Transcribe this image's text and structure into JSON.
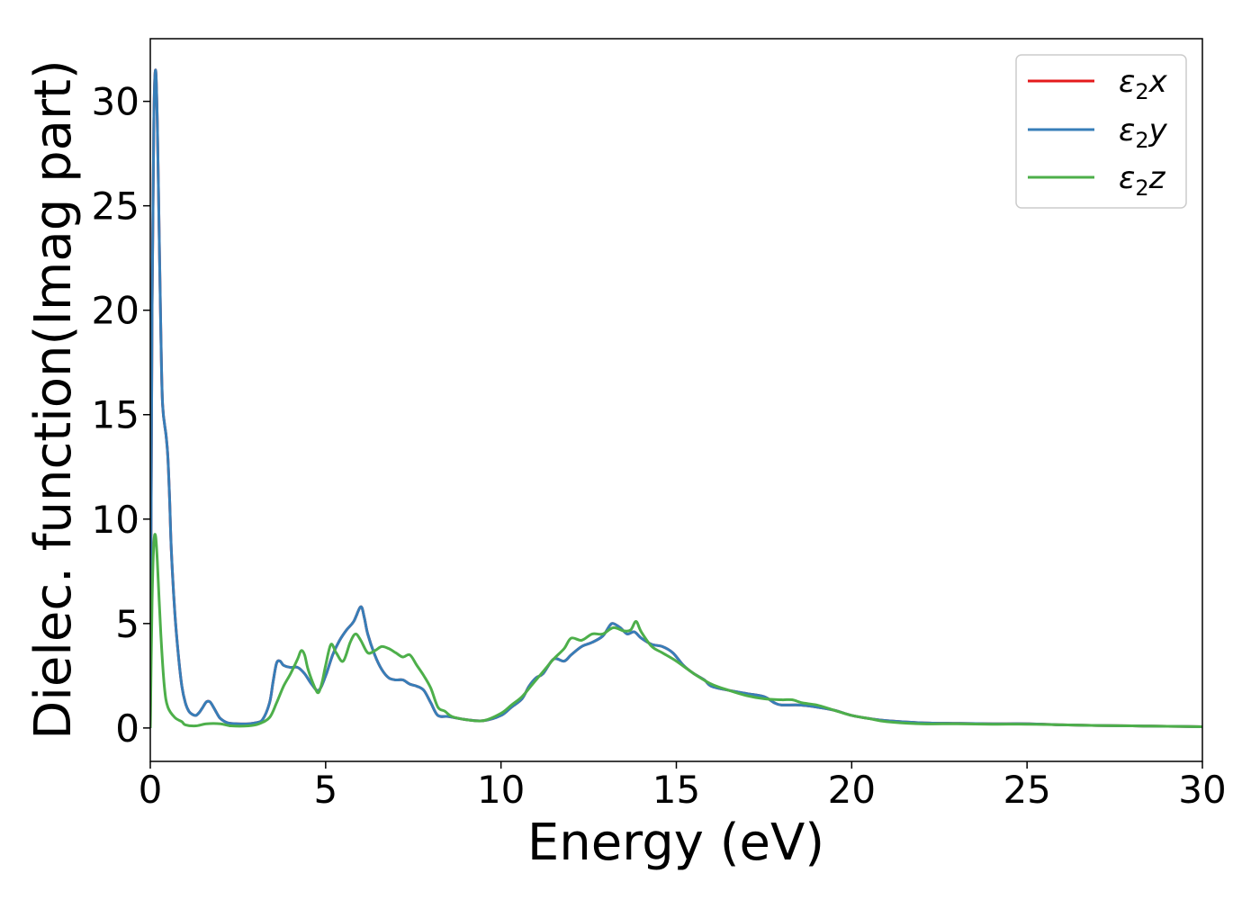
{
  "chart_data": {
    "type": "line",
    "xlabel": "Energy (eV)",
    "ylabel": "Dielec. function(Imag part)",
    "xlim": [
      0,
      30
    ],
    "ylim": [
      -1.6,
      33
    ],
    "xticks": [
      0,
      5,
      10,
      15,
      20,
      25,
      30
    ],
    "yticks": [
      0,
      5,
      10,
      15,
      20,
      25,
      30
    ],
    "grid": false,
    "legend_position": "top-right",
    "legend_entries": [
      {
        "base": "ε",
        "sub": "2",
        "suffix": "x"
      },
      {
        "base": "ε",
        "sub": "2",
        "suffix": "y"
      },
      {
        "base": "ε",
        "sub": "2",
        "suffix": "z"
      }
    ],
    "series": [
      {
        "name": "ε2x",
        "color": "#e41a1c",
        "points": [
          [
            0,
            0
          ],
          [
            0.05,
            20
          ],
          [
            0.1,
            29
          ],
          [
            0.15,
            31.5
          ],
          [
            0.2,
            29
          ],
          [
            0.25,
            24
          ],
          [
            0.3,
            19
          ],
          [
            0.35,
            15.5
          ],
          [
            0.45,
            14
          ],
          [
            0.5,
            13
          ],
          [
            0.55,
            11
          ],
          [
            0.6,
            8.5
          ],
          [
            0.7,
            5.5
          ],
          [
            0.8,
            3.5
          ],
          [
            0.9,
            2
          ],
          [
            1.0,
            1.2
          ],
          [
            1.1,
            0.8
          ],
          [
            1.2,
            0.65
          ],
          [
            1.3,
            0.6
          ],
          [
            1.4,
            0.75
          ],
          [
            1.5,
            1.0
          ],
          [
            1.6,
            1.25
          ],
          [
            1.7,
            1.25
          ],
          [
            1.8,
            1.0
          ],
          [
            1.9,
            0.7
          ],
          [
            2.0,
            0.45
          ],
          [
            2.2,
            0.25
          ],
          [
            2.5,
            0.2
          ],
          [
            2.8,
            0.2
          ],
          [
            3.0,
            0.25
          ],
          [
            3.2,
            0.4
          ],
          [
            3.4,
            1.2
          ],
          [
            3.5,
            2.2
          ],
          [
            3.6,
            3.1
          ],
          [
            3.7,
            3.2
          ],
          [
            3.8,
            3.0
          ],
          [
            4.0,
            2.9
          ],
          [
            4.2,
            2.9
          ],
          [
            4.4,
            2.6
          ],
          [
            4.6,
            2.1
          ],
          [
            4.8,
            1.8
          ],
          [
            5.0,
            2.5
          ],
          [
            5.2,
            3.5
          ],
          [
            5.4,
            4.2
          ],
          [
            5.6,
            4.7
          ],
          [
            5.8,
            5.1
          ],
          [
            6.0,
            5.8
          ],
          [
            6.1,
            5.3
          ],
          [
            6.2,
            4.5
          ],
          [
            6.4,
            3.5
          ],
          [
            6.6,
            2.8
          ],
          [
            6.8,
            2.4
          ],
          [
            7.0,
            2.3
          ],
          [
            7.2,
            2.3
          ],
          [
            7.4,
            2.1
          ],
          [
            7.6,
            2.0
          ],
          [
            7.8,
            1.8
          ],
          [
            8.0,
            1.2
          ],
          [
            8.2,
            0.6
          ],
          [
            8.5,
            0.55
          ],
          [
            9.0,
            0.4
          ],
          [
            9.5,
            0.35
          ],
          [
            10.0,
            0.6
          ],
          [
            10.3,
            1.0
          ],
          [
            10.6,
            1.4
          ],
          [
            10.8,
            2.0
          ],
          [
            11.0,
            2.4
          ],
          [
            11.2,
            2.6
          ],
          [
            11.5,
            3.3
          ],
          [
            11.8,
            3.2
          ],
          [
            12.0,
            3.5
          ],
          [
            12.3,
            3.9
          ],
          [
            12.6,
            4.1
          ],
          [
            12.9,
            4.4
          ],
          [
            13.1,
            4.9
          ],
          [
            13.2,
            5.0
          ],
          [
            13.4,
            4.8
          ],
          [
            13.6,
            4.5
          ],
          [
            13.8,
            4.6
          ],
          [
            14.0,
            4.3
          ],
          [
            14.3,
            4.0
          ],
          [
            14.6,
            3.9
          ],
          [
            14.9,
            3.6
          ],
          [
            15.2,
            3.0
          ],
          [
            15.5,
            2.6
          ],
          [
            15.8,
            2.3
          ],
          [
            16.0,
            2.0
          ],
          [
            16.5,
            1.8
          ],
          [
            17.0,
            1.65
          ],
          [
            17.5,
            1.5
          ],
          [
            17.8,
            1.2
          ],
          [
            18.0,
            1.1
          ],
          [
            18.5,
            1.1
          ],
          [
            19.0,
            1.0
          ],
          [
            19.5,
            0.85
          ],
          [
            20.0,
            0.6
          ],
          [
            20.5,
            0.45
          ],
          [
            21.0,
            0.35
          ],
          [
            22.0,
            0.25
          ],
          [
            23.0,
            0.22
          ],
          [
            24.0,
            0.2
          ],
          [
            25.0,
            0.2
          ],
          [
            26.0,
            0.15
          ],
          [
            27.0,
            0.12
          ],
          [
            28.0,
            0.1
          ],
          [
            29.0,
            0.08
          ],
          [
            30.0,
            0.06
          ]
        ]
      },
      {
        "name": "ε2y",
        "color": "#377eb8",
        "points": [
          [
            0,
            0
          ],
          [
            0.05,
            20
          ],
          [
            0.1,
            29
          ],
          [
            0.15,
            31.5
          ],
          [
            0.2,
            29
          ],
          [
            0.25,
            24
          ],
          [
            0.3,
            19
          ],
          [
            0.35,
            15.5
          ],
          [
            0.45,
            14
          ],
          [
            0.5,
            13
          ],
          [
            0.55,
            11
          ],
          [
            0.6,
            8.5
          ],
          [
            0.7,
            5.5
          ],
          [
            0.8,
            3.5
          ],
          [
            0.9,
            2
          ],
          [
            1.0,
            1.2
          ],
          [
            1.1,
            0.8
          ],
          [
            1.2,
            0.65
          ],
          [
            1.3,
            0.6
          ],
          [
            1.4,
            0.75
          ],
          [
            1.5,
            1.0
          ],
          [
            1.6,
            1.25
          ],
          [
            1.7,
            1.25
          ],
          [
            1.8,
            1.0
          ],
          [
            1.9,
            0.7
          ],
          [
            2.0,
            0.45
          ],
          [
            2.2,
            0.25
          ],
          [
            2.5,
            0.2
          ],
          [
            2.8,
            0.2
          ],
          [
            3.0,
            0.25
          ],
          [
            3.2,
            0.4
          ],
          [
            3.4,
            1.2
          ],
          [
            3.5,
            2.2
          ],
          [
            3.6,
            3.1
          ],
          [
            3.7,
            3.2
          ],
          [
            3.8,
            3.0
          ],
          [
            4.0,
            2.9
          ],
          [
            4.2,
            2.9
          ],
          [
            4.4,
            2.6
          ],
          [
            4.6,
            2.1
          ],
          [
            4.8,
            1.8
          ],
          [
            5.0,
            2.5
          ],
          [
            5.2,
            3.5
          ],
          [
            5.4,
            4.2
          ],
          [
            5.6,
            4.7
          ],
          [
            5.8,
            5.1
          ],
          [
            6.0,
            5.8
          ],
          [
            6.1,
            5.3
          ],
          [
            6.2,
            4.5
          ],
          [
            6.4,
            3.5
          ],
          [
            6.6,
            2.8
          ],
          [
            6.8,
            2.4
          ],
          [
            7.0,
            2.3
          ],
          [
            7.2,
            2.3
          ],
          [
            7.4,
            2.1
          ],
          [
            7.6,
            2.0
          ],
          [
            7.8,
            1.8
          ],
          [
            8.0,
            1.2
          ],
          [
            8.2,
            0.6
          ],
          [
            8.5,
            0.55
          ],
          [
            9.0,
            0.4
          ],
          [
            9.5,
            0.35
          ],
          [
            10.0,
            0.6
          ],
          [
            10.3,
            1.0
          ],
          [
            10.6,
            1.4
          ],
          [
            10.8,
            2.0
          ],
          [
            11.0,
            2.4
          ],
          [
            11.2,
            2.6
          ],
          [
            11.5,
            3.3
          ],
          [
            11.8,
            3.2
          ],
          [
            12.0,
            3.5
          ],
          [
            12.3,
            3.9
          ],
          [
            12.6,
            4.1
          ],
          [
            12.9,
            4.4
          ],
          [
            13.1,
            4.9
          ],
          [
            13.2,
            5.0
          ],
          [
            13.4,
            4.8
          ],
          [
            13.6,
            4.5
          ],
          [
            13.8,
            4.6
          ],
          [
            14.0,
            4.3
          ],
          [
            14.3,
            4.0
          ],
          [
            14.6,
            3.9
          ],
          [
            14.9,
            3.6
          ],
          [
            15.2,
            3.0
          ],
          [
            15.5,
            2.6
          ],
          [
            15.8,
            2.3
          ],
          [
            16.0,
            2.0
          ],
          [
            16.5,
            1.8
          ],
          [
            17.0,
            1.65
          ],
          [
            17.5,
            1.5
          ],
          [
            17.8,
            1.2
          ],
          [
            18.0,
            1.1
          ],
          [
            18.5,
            1.1
          ],
          [
            19.0,
            1.0
          ],
          [
            19.5,
            0.85
          ],
          [
            20.0,
            0.6
          ],
          [
            20.5,
            0.45
          ],
          [
            21.0,
            0.35
          ],
          [
            22.0,
            0.25
          ],
          [
            23.0,
            0.22
          ],
          [
            24.0,
            0.2
          ],
          [
            25.0,
            0.2
          ],
          [
            26.0,
            0.15
          ],
          [
            27.0,
            0.12
          ],
          [
            28.0,
            0.1
          ],
          [
            29.0,
            0.08
          ],
          [
            30.0,
            0.06
          ]
        ]
      },
      {
        "name": "ε2z",
        "color": "#4daf4a",
        "points": [
          [
            0,
            0
          ],
          [
            0.05,
            6
          ],
          [
            0.1,
            8.8
          ],
          [
            0.15,
            9.2
          ],
          [
            0.2,
            8
          ],
          [
            0.3,
            4.5
          ],
          [
            0.4,
            2
          ],
          [
            0.5,
            1
          ],
          [
            0.7,
            0.5
          ],
          [
            0.9,
            0.3
          ],
          [
            1.0,
            0.15
          ],
          [
            1.3,
            0.1
          ],
          [
            1.6,
            0.2
          ],
          [
            2.0,
            0.2
          ],
          [
            2.3,
            0.1
          ],
          [
            2.8,
            0.1
          ],
          [
            3.1,
            0.2
          ],
          [
            3.4,
            0.5
          ],
          [
            3.6,
            1.2
          ],
          [
            3.8,
            2.0
          ],
          [
            4.0,
            2.6
          ],
          [
            4.2,
            3.3
          ],
          [
            4.3,
            3.7
          ],
          [
            4.4,
            3.5
          ],
          [
            4.5,
            2.8
          ],
          [
            4.7,
            1.9
          ],
          [
            4.8,
            1.7
          ],
          [
            4.9,
            2.2
          ],
          [
            5.0,
            3.0
          ],
          [
            5.15,
            4.0
          ],
          [
            5.3,
            3.6
          ],
          [
            5.5,
            3.2
          ],
          [
            5.7,
            4.1
          ],
          [
            5.85,
            4.5
          ],
          [
            6.0,
            4.2
          ],
          [
            6.2,
            3.6
          ],
          [
            6.4,
            3.7
          ],
          [
            6.6,
            3.9
          ],
          [
            6.8,
            3.8
          ],
          [
            7.0,
            3.6
          ],
          [
            7.2,
            3.4
          ],
          [
            7.4,
            3.5
          ],
          [
            7.6,
            3.0
          ],
          [
            7.8,
            2.5
          ],
          [
            8.0,
            1.9
          ],
          [
            8.2,
            1.0
          ],
          [
            8.4,
            0.8
          ],
          [
            8.6,
            0.55
          ],
          [
            9.0,
            0.4
          ],
          [
            9.5,
            0.35
          ],
          [
            10.0,
            0.7
          ],
          [
            10.3,
            1.1
          ],
          [
            10.6,
            1.5
          ],
          [
            10.9,
            2.1
          ],
          [
            11.2,
            2.7
          ],
          [
            11.5,
            3.3
          ],
          [
            11.8,
            3.8
          ],
          [
            12.0,
            4.3
          ],
          [
            12.3,
            4.2
          ],
          [
            12.6,
            4.5
          ],
          [
            12.9,
            4.5
          ],
          [
            13.2,
            4.8
          ],
          [
            13.5,
            4.65
          ],
          [
            13.7,
            4.7
          ],
          [
            13.85,
            5.1
          ],
          [
            14.0,
            4.6
          ],
          [
            14.3,
            3.9
          ],
          [
            14.6,
            3.6
          ],
          [
            15.0,
            3.2
          ],
          [
            15.5,
            2.6
          ],
          [
            16.0,
            2.1
          ],
          [
            16.5,
            1.8
          ],
          [
            17.0,
            1.55
          ],
          [
            17.5,
            1.4
          ],
          [
            18.0,
            1.35
          ],
          [
            18.3,
            1.35
          ],
          [
            18.6,
            1.2
          ],
          [
            19.0,
            1.1
          ],
          [
            19.5,
            0.85
          ],
          [
            20.0,
            0.6
          ],
          [
            20.5,
            0.45
          ],
          [
            21.0,
            0.3
          ],
          [
            22.0,
            0.2
          ],
          [
            23.0,
            0.2
          ],
          [
            24.0,
            0.18
          ],
          [
            25.0,
            0.18
          ],
          [
            26.0,
            0.15
          ],
          [
            27.0,
            0.12
          ],
          [
            28.0,
            0.1
          ],
          [
            29.0,
            0.08
          ],
          [
            30.0,
            0.06
          ]
        ]
      }
    ]
  }
}
